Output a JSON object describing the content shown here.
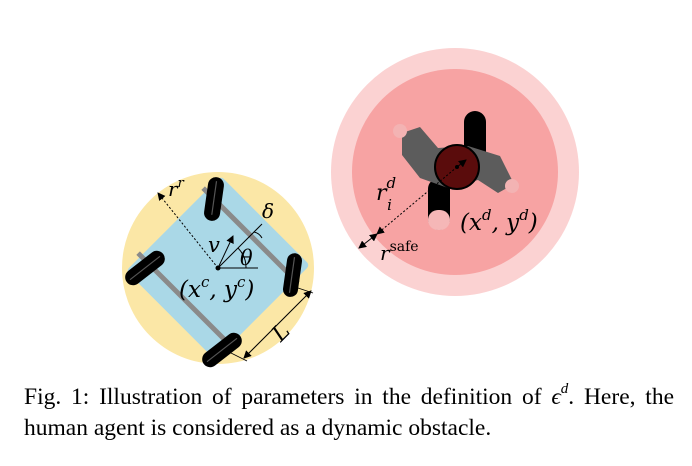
{
  "robot": {
    "radius_label": "r",
    "radius_sup": "r",
    "velocity_label": "v",
    "heading_label": "θ",
    "steer_label": "δ",
    "position_label": "(x",
    "position_sup_x": "c",
    "position_mid": ", y",
    "position_sup_y": "c",
    "position_close": ")",
    "length_label": "L"
  },
  "human": {
    "radius_label": "r",
    "radius_sup": "d",
    "radius_sub": "i",
    "safe_label": "r",
    "safe_sup": "safe",
    "position_label": "(x",
    "position_sup_x": "d",
    "position_mid": ", y",
    "position_sup_y": "d",
    "position_close": ")"
  },
  "caption": {
    "part1": "Fig. 1: Illustration of parameters in the definition of ",
    "epsilon": "ϵ",
    "epsilon_sup": "d",
    "part2": ". Here, the human agent is considered as a dynamic obstacle."
  },
  "colors": {
    "robot_safe_zone": "#fbe7a6",
    "robot_body": "#aad8e7",
    "wheel": "#000000",
    "axle": "#8a8a8a",
    "human_outer_zone": "#fbd2d2",
    "human_inner_zone": "#f7a3a3",
    "human_torso": "#5c5c5c",
    "human_head": "#5a0c0c"
  }
}
